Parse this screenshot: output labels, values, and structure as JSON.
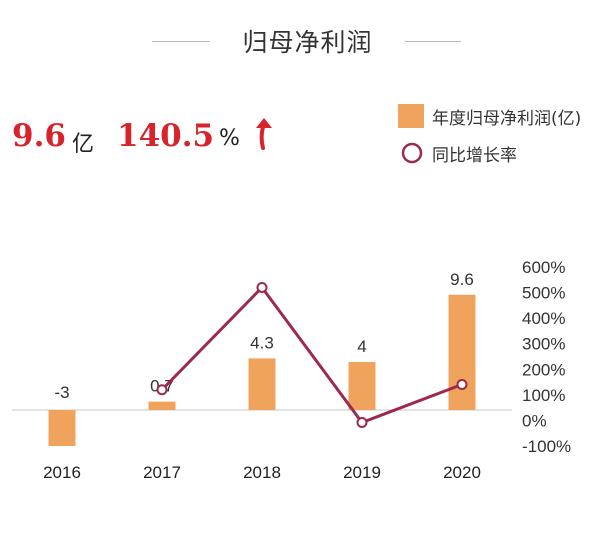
{
  "header": {
    "title": "归母净利润"
  },
  "kpi": {
    "profit_value": "9.6",
    "profit_unit": "亿",
    "growth_value": "140.5",
    "growth_unit": "%"
  },
  "legend": {
    "bar_label": "年度归母净利润(亿)",
    "line_label": "同比增长率"
  },
  "colors": {
    "bar": "#f0a35c",
    "line": "#9b2a4c",
    "accent": "#d8232a"
  },
  "chart_data": {
    "type": "bar",
    "categories": [
      "2016",
      "2017",
      "2018",
      "2019",
      "2020"
    ],
    "series": [
      {
        "name": "年度归母净利润(亿)",
        "type": "bar",
        "values": [
          -3,
          0.7,
          4.3,
          4,
          9.6
        ],
        "labels": [
          "-3",
          "0.7",
          "4.3",
          "4",
          "9.6"
        ]
      },
      {
        "name": "同比增长率",
        "type": "line",
        "axis": "right",
        "values": [
          null,
          120,
          520,
          -8,
          140.5
        ]
      }
    ],
    "y_right": {
      "ticks": [
        "600%",
        "500%",
        "400%",
        "300%",
        "200%",
        "100%",
        "0%",
        "-100%"
      ],
      "ylim": [
        -100,
        600
      ]
    },
    "grid": false,
    "legend_position": "top-right"
  }
}
